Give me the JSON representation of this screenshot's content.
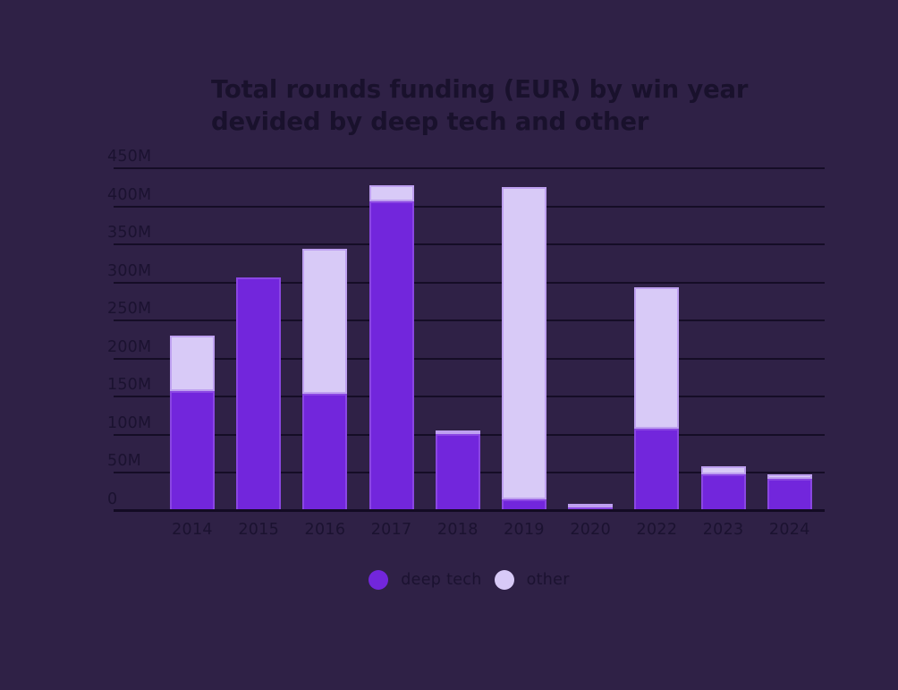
{
  "chart_data": {
    "type": "bar",
    "stacked": true,
    "title": "Total rounds funding (EUR) by win year devided by deep tech and other",
    "categories": [
      "2014",
      "2015",
      "2016",
      "2017",
      "2018",
      "2019",
      "2020",
      "2022",
      "2023",
      "2024"
    ],
    "series": [
      {
        "name": "deep tech",
        "color": "#7226DC",
        "values": [
          158,
          307,
          154,
          406,
          101,
          15,
          5,
          108,
          48,
          42
        ]
      },
      {
        "name": "other",
        "color": "#D8CAF7",
        "values": [
          72,
          0,
          190,
          22,
          5,
          410,
          4,
          186,
          11,
          6
        ]
      }
    ],
    "totals": [
      230,
      307,
      344,
      428,
      106,
      425,
      9,
      294,
      59,
      48
    ],
    "xlabel": "",
    "ylabel": "",
    "ylim": [
      0,
      450
    ],
    "ytick_labels": [
      "450M",
      "400M",
      "350M",
      "300M",
      "250M",
      "200M",
      "150M",
      "100M",
      "50M",
      "0"
    ],
    "ytick_values": [
      450,
      400,
      350,
      300,
      250,
      200,
      150,
      100,
      50,
      0
    ],
    "grid": "horizontal",
    "legend_position": "bottom"
  },
  "legend": {
    "items": [
      {
        "label": "deep tech",
        "color": "#7226DC"
      },
      {
        "label": "other",
        "color": "#D8CAF7"
      }
    ]
  },
  "colors": {
    "background": "#2F2146",
    "deep_tech_fill": "#7226DC",
    "deep_tech_border": "#8A46E3",
    "other_fill": "#D8CAF7",
    "other_border": "#BEA0F0",
    "gridline": "#150D26",
    "text": "#1B1230",
    "title_text": "#19112C"
  }
}
